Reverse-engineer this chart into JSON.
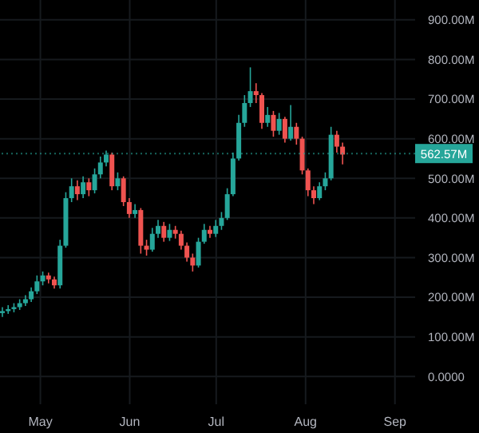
{
  "chart_data": {
    "type": "candlestick",
    "x": [
      "--04-18",
      "--04-20",
      "--04-22",
      "--04-24",
      "--04-26",
      "--04-28",
      "--04-30",
      "--05-02",
      "--05-04",
      "--05-06",
      "--05-08",
      "--05-10",
      "--05-12",
      "--05-14",
      "--05-16",
      "--05-18",
      "--05-20",
      "--05-22",
      "--05-24",
      "--05-26",
      "--05-28",
      "--05-30",
      "--06-01",
      "--06-03",
      "--06-05",
      "--06-07",
      "--06-09",
      "--06-11",
      "--06-13",
      "--06-15",
      "--06-17",
      "--06-19",
      "--06-21",
      "--06-23",
      "--06-25",
      "--06-27",
      "--06-29",
      "--07-01",
      "--07-03",
      "--07-05",
      "--07-07",
      "--07-09",
      "--07-11",
      "--07-13",
      "--07-15",
      "--07-17",
      "--07-19",
      "--07-21",
      "--07-23",
      "--07-25",
      "--07-27",
      "--07-29",
      "--07-31",
      "--08-02",
      "--08-04",
      "--08-06",
      "--08-08",
      "--08-10",
      "--08-12",
      "--08-14"
    ],
    "series": [
      {
        "ohlc": [
          [
            160,
            175,
            150,
            165
          ],
          [
            165,
            180,
            158,
            170
          ],
          [
            170,
            185,
            162,
            175
          ],
          [
            175,
            195,
            168,
            185
          ],
          [
            185,
            205,
            178,
            195
          ],
          [
            195,
            225,
            188,
            215
          ],
          [
            215,
            255,
            208,
            240
          ],
          [
            240,
            265,
            230,
            255
          ],
          [
            255,
            262,
            235,
            245
          ],
          [
            245,
            252,
            222,
            230
          ],
          [
            230,
            345,
            222,
            330
          ],
          [
            330,
            465,
            325,
            450
          ],
          [
            450,
            500,
            440,
            480
          ],
          [
            480,
            495,
            445,
            460
          ],
          [
            460,
            505,
            450,
            490
          ],
          [
            490,
            500,
            455,
            470
          ],
          [
            470,
            525,
            462,
            510
          ],
          [
            510,
            555,
            500,
            540
          ],
          [
            540,
            570,
            530,
            560
          ],
          [
            560,
            565,
            470,
            480
          ],
          [
            480,
            515,
            470,
            500
          ],
          [
            500,
            505,
            430,
            440
          ],
          [
            440,
            450,
            400,
            410
          ],
          [
            410,
            435,
            400,
            420
          ],
          [
            420,
            425,
            310,
            330
          ],
          [
            330,
            345,
            305,
            320
          ],
          [
            320,
            375,
            315,
            360
          ],
          [
            360,
            395,
            350,
            380
          ],
          [
            380,
            390,
            340,
            350
          ],
          [
            350,
            385,
            342,
            370
          ],
          [
            370,
            380,
            348,
            360
          ],
          [
            360,
            368,
            320,
            330
          ],
          [
            330,
            338,
            290,
            300
          ],
          [
            300,
            310,
            265,
            280
          ],
          [
            280,
            350,
            275,
            340
          ],
          [
            340,
            385,
            335,
            370
          ],
          [
            370,
            380,
            350,
            360
          ],
          [
            360,
            395,
            352,
            380
          ],
          [
            380,
            415,
            370,
            400
          ],
          [
            400,
            475,
            395,
            460
          ],
          [
            460,
            565,
            455,
            550
          ],
          [
            550,
            660,
            545,
            640
          ],
          [
            640,
            710,
            630,
            690
          ],
          [
            690,
            780,
            680,
            720
          ],
          [
            720,
            740,
            690,
            710
          ],
          [
            710,
            715,
            625,
            640
          ],
          [
            640,
            680,
            630,
            660
          ],
          [
            660,
            670,
            605,
            620
          ],
          [
            620,
            665,
            610,
            650
          ],
          [
            650,
            655,
            590,
            600
          ],
          [
            600,
            685,
            595,
            630
          ],
          [
            630,
            640,
            585,
            600
          ],
          [
            600,
            605,
            510,
            520
          ],
          [
            520,
            525,
            455,
            470
          ],
          [
            470,
            480,
            435,
            450
          ],
          [
            450,
            490,
            445,
            480
          ],
          [
            480,
            515,
            470,
            500
          ],
          [
            500,
            630,
            495,
            610
          ],
          [
            610,
            620,
            565,
            580
          ],
          [
            580,
            590,
            535,
            560
          ]
        ],
        "colors": [
          "#26a69a",
          "#26a69a",
          "#26a69a",
          "#26a69a",
          "#26a69a",
          "#26a69a",
          "#26a69a",
          "#26a69a",
          "#ef5350",
          "#ef5350",
          "#26a69a",
          "#26a69a",
          "#26a69a",
          "#ef5350",
          "#26a69a",
          "#ef5350",
          "#26a69a",
          "#26a69a",
          "#26a69a",
          "#ef5350",
          "#26a69a",
          "#ef5350",
          "#ef5350",
          "#26a69a",
          "#ef5350",
          "#ef5350",
          "#26a69a",
          "#26a69a",
          "#ef5350",
          "#26a69a",
          "#ef5350",
          "#ef5350",
          "#ef5350",
          "#ef5350",
          "#26a69a",
          "#26a69a",
          "#ef5350",
          "#26a69a",
          "#26a69a",
          "#26a69a",
          "#26a69a",
          "#26a69a",
          "#26a69a",
          "#26a69a",
          "#ef5350",
          "#ef5350",
          "#26a69a",
          "#ef5350",
          "#26a69a",
          "#ef5350",
          "#26a69a",
          "#ef5350",
          "#ef5350",
          "#ef5350",
          "#ef5350",
          "#26a69a",
          "#26a69a",
          "#26a69a",
          "#ef5350",
          "#ef5350"
        ]
      }
    ],
    "xlim": [
      "--04-17",
      "--09-08"
    ],
    "xticks": [
      {
        "value": "--05-01",
        "label": "May"
      },
      {
        "value": "--06-01",
        "label": "Jun"
      },
      {
        "value": "--07-01",
        "label": "Jul"
      },
      {
        "value": "--08-01",
        "label": "Aug"
      },
      {
        "value": "--09-01",
        "label": "Sep"
      }
    ],
    "ylim": [
      -70,
      950
    ],
    "yticks": [
      {
        "value": 0,
        "label": "0.0000"
      },
      {
        "value": 100,
        "label": "100.00M"
      },
      {
        "value": 200,
        "label": "200.00M"
      },
      {
        "value": 300,
        "label": "300.00M"
      },
      {
        "value": 400,
        "label": "400.00M"
      },
      {
        "value": 500,
        "label": "500.00M"
      },
      {
        "value": 600,
        "label": "600.00M"
      },
      {
        "value": 700,
        "label": "700.00M"
      },
      {
        "value": 800,
        "label": "800.00M"
      },
      {
        "value": 900,
        "label": "900.00M"
      }
    ],
    "ref_lines": [
      {
        "axis": "y",
        "value": 562.57,
        "label": "562.57M",
        "color": "#26a69a",
        "line_style": "dotted"
      }
    ],
    "grid": true,
    "legend": false
  }
}
